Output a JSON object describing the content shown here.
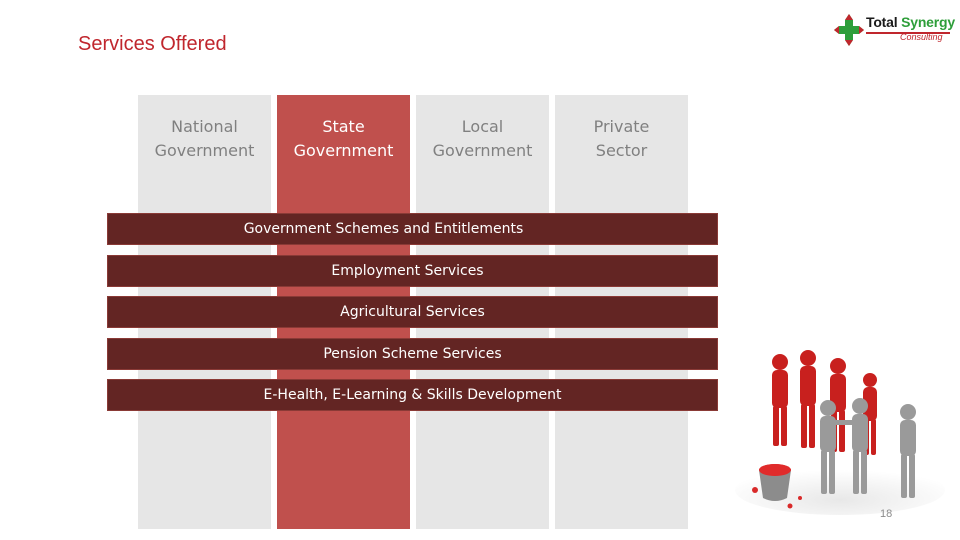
{
  "slide": {
    "title": "Services Offered",
    "page_number": "18"
  },
  "logo": {
    "name_part1": "Total",
    "name_part2": "Synergy",
    "tagline": "Consulting",
    "brand_colors": {
      "red": "#c0262d",
      "green": "#2e9e3a"
    }
  },
  "columns": [
    {
      "label_line1": "National",
      "label_line2": "Government",
      "highlight": false
    },
    {
      "label_line1": "State",
      "label_line2": "Government",
      "highlight": true
    },
    {
      "label_line1": "Local",
      "label_line2": "Government",
      "highlight": false
    },
    {
      "label_line1": "Private",
      "label_line2": "Sector",
      "highlight": false
    }
  ],
  "services": [
    "Government Schemes and Entitlements",
    "Employment Services",
    "Agricultural Services",
    "Pension Scheme Services",
    "E-Health, E-Learning & Skills Development"
  ],
  "colors": {
    "column_bg": "#e6e6e6",
    "column_highlight": "#c0504d",
    "band_bg": "#632523",
    "title": "#c0262d"
  }
}
